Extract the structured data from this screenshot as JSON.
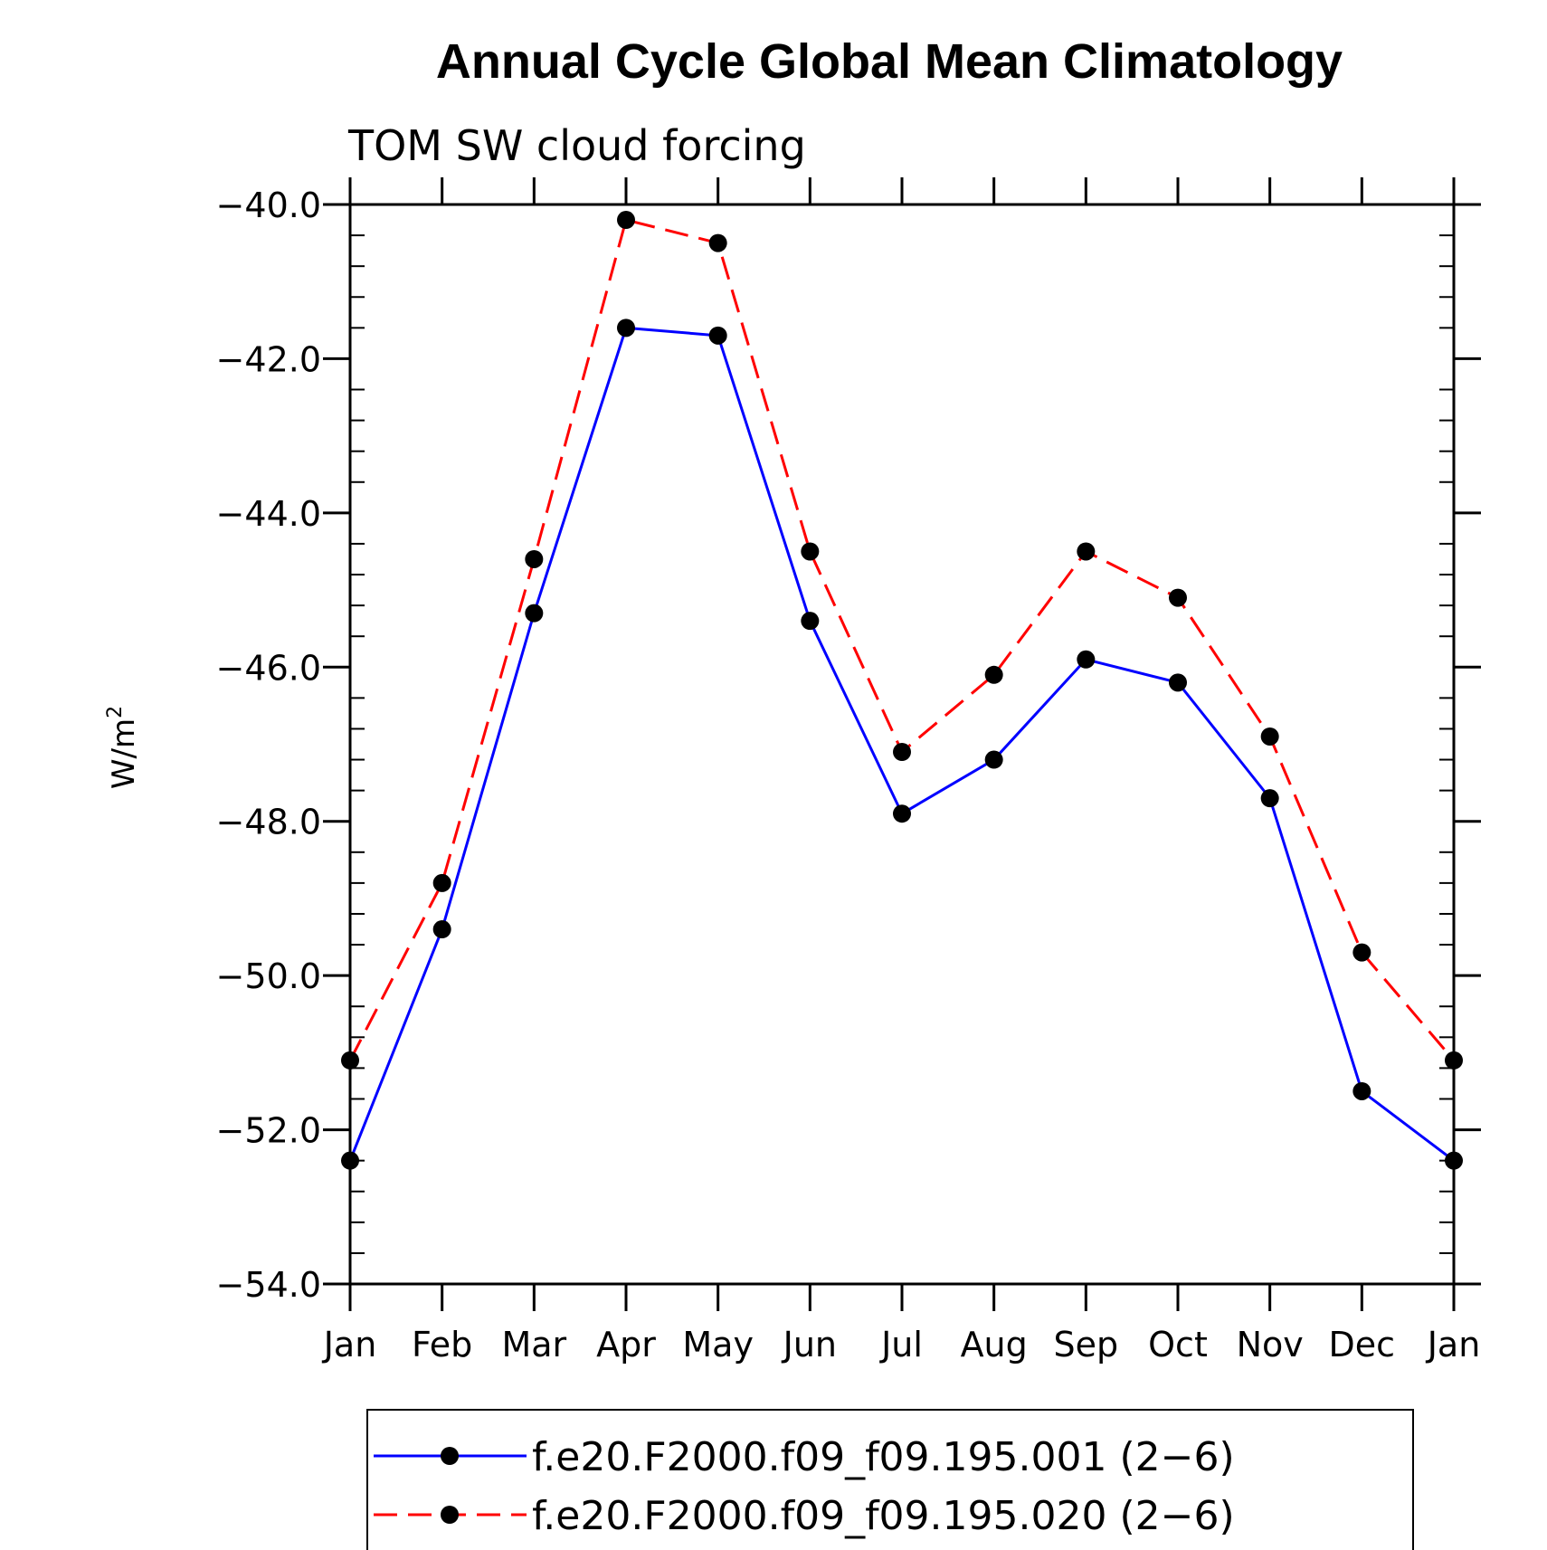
{
  "chart_data": {
    "type": "line",
    "title": "Annual Cycle Global Mean Climatology",
    "subtitle": "TOM SW cloud forcing",
    "ylabel": "W/m",
    "ylabel_superscript": "2",
    "xlabel": "",
    "categories": [
      "Jan",
      "Feb",
      "Mar",
      "Apr",
      "May",
      "Jun",
      "Jul",
      "Aug",
      "Sep",
      "Oct",
      "Nov",
      "Dec",
      "Jan"
    ],
    "ylim": [
      -54.0,
      -40.0
    ],
    "yticks": [
      -40.0,
      -42.0,
      -44.0,
      -46.0,
      -48.0,
      -50.0,
      -52.0,
      -54.0
    ],
    "ytick_labels": [
      "−40.0",
      "−42.0",
      "−44.0",
      "−46.0",
      "−48.0",
      "−50.0",
      "−52.0",
      "−54.0"
    ],
    "grid": false,
    "legend_position": "bottom",
    "series": [
      {
        "name": "f.e20.F2000.f09_f09.195.001 (2−6)",
        "color": "#0000ff",
        "dash": "solid",
        "values": [
          -52.4,
          -49.4,
          -45.3,
          -41.6,
          -41.7,
          -45.4,
          -47.9,
          -47.2,
          -45.9,
          -46.2,
          -47.7,
          -51.5,
          -52.4
        ]
      },
      {
        "name": "f.e20.F2000.f09_f09.195.020 (2−6)",
        "color": "#ff0000",
        "dash": "dashed",
        "values": [
          -51.1,
          -48.8,
          -44.6,
          -40.2,
          -40.5,
          -44.5,
          -47.1,
          -46.1,
          -44.5,
          -45.1,
          -46.9,
          -49.7,
          -51.1
        ]
      }
    ],
    "marker_color": "#000000"
  }
}
